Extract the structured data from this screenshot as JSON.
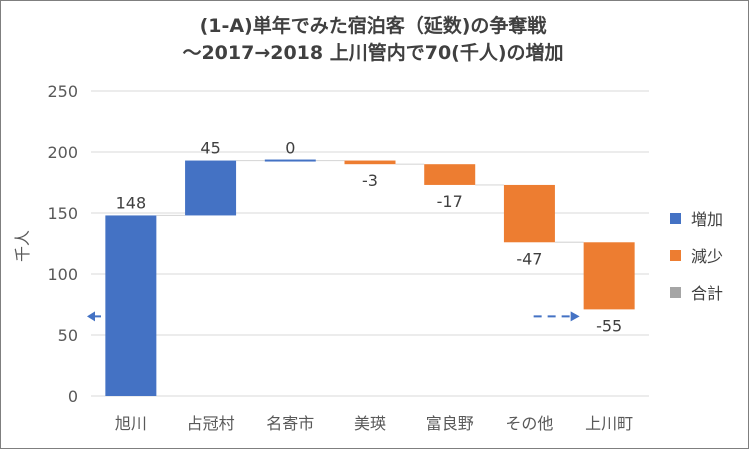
{
  "chart_data": {
    "type": "bar",
    "subtype": "waterfall",
    "title_line1": "(1-A)単年でみた宿泊客（延数)の争奪戦",
    "title_line2": "～2017→2018 上川管内で70(千人)の増加",
    "ylabel": "千人",
    "ylim": [
      0,
      250
    ],
    "yticks": [
      0,
      50,
      100,
      150,
      200,
      250
    ],
    "grid": true,
    "categories": [
      "旭川",
      "占冠村",
      "名寄市",
      "美瑛",
      "富良野",
      "その他",
      "上川町"
    ],
    "values": [
      148,
      45,
      0,
      -3,
      -17,
      -47,
      -55
    ],
    "data_labels": [
      "148",
      "45",
      "0",
      "-3",
      "-17",
      "-47",
      "-55"
    ],
    "kinds": [
      "increase",
      "increase",
      "increase",
      "decrease",
      "decrease",
      "decrease",
      "decrease"
    ],
    "legend_position": "right",
    "legend": [
      {
        "label": "増加",
        "color": "#4472c4"
      },
      {
        "label": "減少",
        "color": "#ed7d31"
      },
      {
        "label": "合計",
        "color": "#a5a5a5"
      }
    ],
    "colors": {
      "increase": "#4472c4",
      "decrease": "#ed7d31",
      "total": "#a5a5a5",
      "connector": "#d9d9d9",
      "arrow": "#4472c4"
    }
  }
}
